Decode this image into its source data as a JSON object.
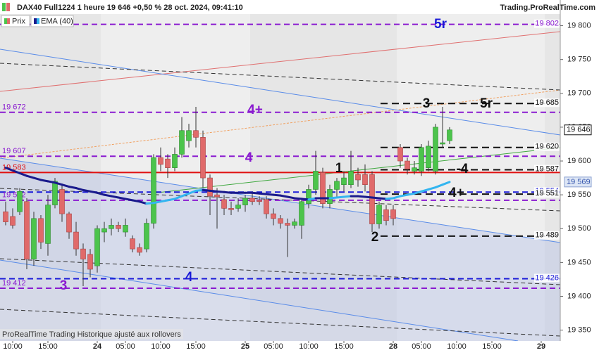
{
  "chart_data": {
    "type": "candlestick",
    "title": "DAX40 Full1224 1 heure 19 646 +0,50 % 28 oct. 2024, 09:41:10",
    "source": "Trading.ProRealTime.com",
    "footer": "ProRealTime Trading Historique ajusté aux rollovers",
    "candles": {
      "name": "Prix",
      "up_color": "#4cc44c",
      "down_color": "#e06a6a",
      "open": [
        19525,
        19518,
        19525,
        19540,
        19455,
        19515,
        19478,
        19535,
        19558,
        19522,
        19495,
        19470,
        19462,
        19445,
        19495,
        19500,
        19505,
        19495,
        19485,
        19472,
        19470,
        19508,
        19605,
        19603,
        19590,
        19610,
        19630,
        19645,
        19635,
        19575,
        19550,
        19543,
        19530,
        19530,
        19535,
        19545,
        19542,
        19543,
        19522,
        19515,
        19508,
        19505,
        19505,
        19537,
        19558,
        19583,
        19537,
        19558,
        19565,
        19565,
        19580,
        19580,
        19580,
        19507,
        19528,
        19528,
        19620,
        19600,
        19585,
        19585,
        19590,
        19585,
        19625,
        19630
      ],
      "high": [
        19540,
        19530,
        19560,
        19545,
        19525,
        19520,
        19550,
        19575,
        19565,
        19525,
        19510,
        19478,
        19470,
        19505,
        19510,
        19515,
        19510,
        19515,
        19490,
        19478,
        19515,
        19610,
        19620,
        19610,
        19620,
        19665,
        19655,
        19680,
        19645,
        19580,
        19560,
        19550,
        19540,
        19545,
        19550,
        19555,
        19548,
        19548,
        19530,
        19520,
        19515,
        19515,
        19545,
        19565,
        19615,
        19590,
        19565,
        19575,
        19585,
        19615,
        19590,
        19595,
        19585,
        19540,
        19535,
        19535,
        19625,
        19605,
        19600,
        19625,
        19630,
        19655,
        19680,
        19650
      ],
      "low": [
        19505,
        19500,
        19520,
        19440,
        19445,
        19470,
        19460,
        19530,
        19510,
        19485,
        19460,
        19415,
        19428,
        19435,
        19480,
        19490,
        19495,
        19488,
        19465,
        19460,
        19465,
        19500,
        19585,
        19575,
        19585,
        19605,
        19620,
        19620,
        19560,
        19520,
        19500,
        19520,
        19520,
        19525,
        19525,
        19535,
        19535,
        19515,
        19505,
        19500,
        19458,
        19500,
        19485,
        19530,
        19550,
        19530,
        19530,
        19545,
        19555,
        19560,
        19562,
        19555,
        19495,
        19500,
        19505,
        19505,
        19590,
        19580,
        19580,
        19578,
        19585,
        19580,
        19620,
        19625
      ],
      "close": [
        19510,
        19505,
        19555,
        19455,
        19515,
        19480,
        19535,
        19570,
        19522,
        19495,
        19470,
        19455,
        19440,
        19500,
        19500,
        19505,
        19500,
        19505,
        19470,
        19465,
        19508,
        19605,
        19595,
        19590,
        19610,
        19645,
        19645,
        19635,
        19575,
        19548,
        19547,
        19530,
        19528,
        19535,
        19545,
        19540,
        19540,
        19522,
        19515,
        19508,
        19505,
        19510,
        19540,
        19558,
        19585,
        19537,
        19558,
        19570,
        19575,
        19585,
        19572,
        19565,
        19507,
        19535,
        19512,
        19515,
        19600,
        19588,
        19590,
        19620,
        19622,
        19650,
        19627,
        19646
      ]
    },
    "ema": {
      "name": "EMA (40)",
      "color": "#1a1a8c",
      "rising_color": "#33b5f0",
      "values": [
        19590,
        19586,
        19582,
        19578,
        19575,
        19572,
        19570,
        19568,
        19565,
        19562,
        19560,
        19557,
        19555,
        19553,
        19550,
        19548,
        19546,
        19544,
        19542,
        19540,
        19537,
        19538,
        19540,
        19542,
        19544,
        19548,
        19552,
        19556,
        19557,
        19556,
        19555,
        19554,
        19553,
        19553,
        19553,
        19553,
        19552,
        19551,
        19550,
        19549,
        19547,
        19545,
        19544,
        19543,
        19545,
        19545,
        19545,
        19546,
        19547,
        19548,
        19548,
        19547,
        19546,
        19545,
        19544,
        19545,
        19548,
        19550,
        19552,
        19555,
        19558,
        19561,
        19565,
        19569
      ]
    },
    "xlim": [
      -0.8,
      78.7
    ],
    "xticks": [
      {
        "value": 1,
        "label": "10:00"
      },
      {
        "value": 6,
        "label": "15:00"
      },
      {
        "value": 13,
        "label": "24"
      },
      {
        "value": 17,
        "label": "05:00"
      },
      {
        "value": 22,
        "label": "10:00"
      },
      {
        "value": 27,
        "label": "15:00"
      },
      {
        "value": 34,
        "label": "25"
      },
      {
        "value": 38,
        "label": "05:00"
      },
      {
        "value": 43,
        "label": "10:00"
      },
      {
        "value": 48,
        "label": "15:00"
      },
      {
        "value": 55,
        "label": "28"
      },
      {
        "value": 59,
        "label": "05:00"
      },
      {
        "value": 64,
        "label": "10:00"
      },
      {
        "value": 69,
        "label": "15:00"
      },
      {
        "value": 76,
        "label": "29"
      }
    ],
    "ylim": [
      19334,
      19838
    ],
    "yticks": [
      {
        "value": 19350,
        "label": "19 350"
      },
      {
        "value": 19400,
        "label": "19 400"
      },
      {
        "value": 19450,
        "label": "19 450"
      },
      {
        "value": 19500,
        "label": "19 500"
      },
      {
        "value": 19550,
        "label": "19 550"
      },
      {
        "value": 19600,
        "label": "19 600"
      },
      {
        "value": 19650,
        "label": "19 650"
      },
      {
        "value": 19700,
        "label": "19 700"
      },
      {
        "value": 19750,
        "label": "19 750"
      },
      {
        "value": 19800,
        "label": "19 800"
      }
    ],
    "levels": [
      {
        "value": 19802,
        "label": "19 802",
        "color": "#8a1ad0",
        "style": "dashed",
        "side": "right"
      },
      {
        "value": 19685,
        "label": "19 685",
        "color": "#111111",
        "style": "dashed",
        "side": "right"
      },
      {
        "value": 19672,
        "label": "19 672",
        "color": "#8a1ad0",
        "style": "dashed",
        "side": "left"
      },
      {
        "value": 19620,
        "label": "19 620",
        "color": "#111111",
        "style": "dashed",
        "side": "right"
      },
      {
        "value": 19607,
        "label": "19 607",
        "color": "#8a1ad0",
        "style": "dashed",
        "side": "left"
      },
      {
        "value": 19587,
        "label": "19 587",
        "color": "#111111",
        "style": "dashed",
        "side": "right"
      },
      {
        "value": 19583,
        "label": "19 583",
        "color": "#e01010",
        "style": "solid",
        "side": "left"
      },
      {
        "value": 19554,
        "label": "19 554",
        "color": "#1a1ad8",
        "style": "dashed",
        "side": "right"
      },
      {
        "value": 19551,
        "label": "19 551",
        "color": "#111111",
        "style": "dashed",
        "side": "right"
      },
      {
        "value": 19542,
        "label": "19 542",
        "color": "#8a1ad0",
        "style": "dashed",
        "side": "left"
      },
      {
        "value": 19489,
        "label": "19 489",
        "color": "#111111",
        "style": "dashed",
        "side": "right"
      },
      {
        "value": 19426,
        "label": "19 426",
        "color": "#1a1ad8",
        "style": "dashed",
        "side": "right"
      },
      {
        "value": 19412,
        "label": "19 412",
        "color": "#8a1ad0",
        "style": "dashed",
        "side": "left"
      }
    ],
    "price_tag": {
      "value": 19646,
      "label": "19 646"
    },
    "ema_tag": {
      "value": 19569,
      "label": "19 569"
    },
    "annotations": [
      "5r",
      "4+",
      "4",
      "3",
      "4",
      "1",
      "2",
      "3",
      "5r",
      "-4",
      "4+"
    ]
  }
}
